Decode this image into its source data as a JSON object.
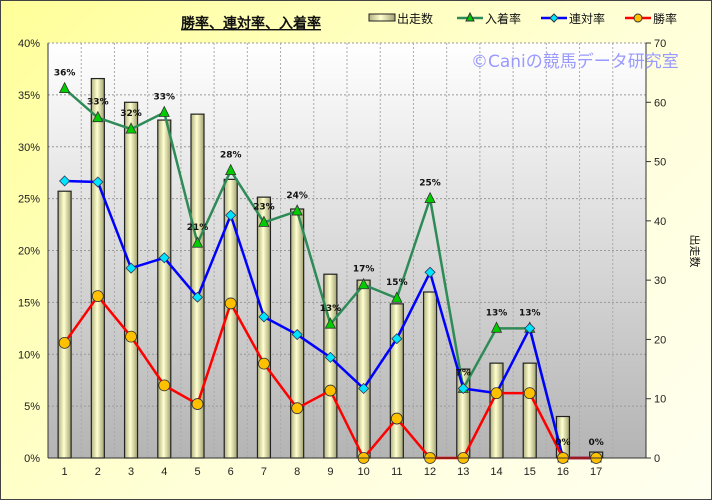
{
  "chart_data": {
    "type": "bar+line",
    "title": "勝率、連対率、入着率",
    "watermark": "©Caniの競馬データ研究室",
    "categories": [
      "1",
      "2",
      "3",
      "4",
      "5",
      "6",
      "7",
      "8",
      "9",
      "10",
      "11",
      "12",
      "13",
      "14",
      "15",
      "16",
      "17"
    ],
    "y_left": {
      "range": [
        0,
        40
      ],
      "unit": "%",
      "ticks": [
        "0%",
        "5%",
        "10%",
        "15%",
        "20%",
        "25%",
        "30%",
        "35%",
        "40%"
      ]
    },
    "y_right": {
      "label": "出走数",
      "range": [
        0,
        70
      ],
      "ticks": [
        "0",
        "10",
        "20",
        "30",
        "40",
        "50",
        "60",
        "70"
      ]
    },
    "grid": true,
    "legend_placement": "top",
    "series": [
      {
        "name": "出走数",
        "type": "bar",
        "axis": "right",
        "color": "#f0f0c0",
        "values": [
          45,
          64,
          60,
          57,
          58,
          47,
          44,
          42,
          31,
          30,
          26,
          28,
          15,
          16,
          16,
          7,
          1
        ]
      },
      {
        "name": "入着率",
        "type": "line",
        "axis": "left",
        "color": "#2e8b57",
        "marker": "triangle",
        "marker_color": "#00cc00",
        "values": [
          35.6,
          32.8,
          31.7,
          33.3,
          20.7,
          27.7,
          22.7,
          23.8,
          12.9,
          16.7,
          15.4,
          25.0,
          6.7,
          12.5,
          12.5,
          0,
          0
        ],
        "data_labels": [
          "36%",
          "33%",
          "32%",
          "33%",
          "21%",
          "28%",
          "23%",
          "24%",
          "13%",
          "17%",
          "15%",
          "25%",
          "7%",
          "13%",
          "13%",
          "0%",
          "0%"
        ]
      },
      {
        "name": "連対率",
        "type": "line",
        "axis": "left",
        "color": "#0000ff",
        "marker": "diamond",
        "marker_color": "#00e5ff",
        "values": [
          26.7,
          26.6,
          18.3,
          19.3,
          15.5,
          23.4,
          13.6,
          11.9,
          9.7,
          6.7,
          11.5,
          17.9,
          6.7,
          6.25,
          12.5,
          0,
          0
        ]
      },
      {
        "name": "勝率",
        "type": "line",
        "axis": "left",
        "color": "#ff0000",
        "marker": "circle",
        "marker_color": "#ffc000",
        "values": [
          11.1,
          15.6,
          11.7,
          7.0,
          5.2,
          14.9,
          9.1,
          4.8,
          6.5,
          0,
          3.8,
          0,
          0,
          6.25,
          6.25,
          0,
          0
        ]
      }
    ]
  }
}
